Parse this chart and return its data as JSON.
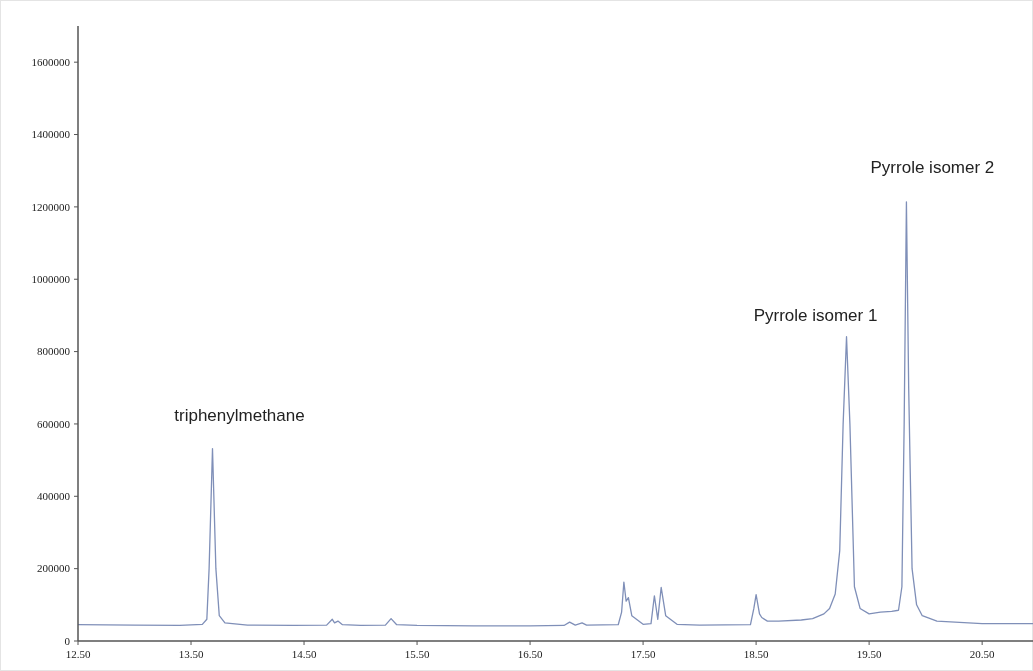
{
  "chart_data": {
    "type": "line",
    "xlim": [
      12.5,
      20.95
    ],
    "ylim": [
      0,
      1700000
    ],
    "xticks": [
      {
        "value": 12.5,
        "label": "12.50"
      },
      {
        "value": 13.5,
        "label": "13.50"
      },
      {
        "value": 14.5,
        "label": "14.50"
      },
      {
        "value": 15.5,
        "label": "15.50"
      },
      {
        "value": 16.5,
        "label": "16.50"
      },
      {
        "value": 17.5,
        "label": "17.50"
      },
      {
        "value": 18.5,
        "label": "18.50"
      },
      {
        "value": 19.5,
        "label": "19.50"
      },
      {
        "value": 20.5,
        "label": "20.50"
      }
    ],
    "yticks": [
      0,
      200000,
      400000,
      600000,
      800000,
      1000000,
      1200000,
      1400000,
      1600000
    ],
    "grid": false,
    "marker": "none",
    "line_style": "solid",
    "series": [
      {
        "color": "#7f8fb8",
        "x": [
          12.5,
          13.0,
          13.4,
          13.6,
          13.64,
          13.66,
          13.69,
          13.72,
          13.75,
          13.8,
          14.0,
          14.4,
          14.7,
          14.75,
          14.77,
          14.8,
          14.84,
          15.0,
          15.22,
          15.27,
          15.32,
          15.5,
          16.0,
          16.5,
          16.8,
          16.85,
          16.9,
          16.96,
          17.0,
          17.28,
          17.31,
          17.33,
          17.35,
          17.37,
          17.4,
          17.5,
          17.57,
          17.6,
          17.63,
          17.66,
          17.7,
          17.8,
          18.0,
          18.45,
          18.48,
          18.5,
          18.53,
          18.55,
          18.6,
          18.7,
          18.9,
          19.0,
          19.1,
          19.15,
          19.2,
          19.24,
          19.27,
          19.3,
          19.33,
          19.37,
          19.42,
          19.5,
          19.6,
          19.7,
          19.76,
          19.79,
          19.81,
          19.83,
          19.85,
          19.88,
          19.92,
          19.97,
          20.1,
          20.5,
          20.95
        ],
        "values": [
          45000,
          44000,
          43000,
          46000,
          60000,
          200000,
          532000,
          200000,
          70000,
          50000,
          44000,
          43000,
          44000,
          60000,
          50000,
          55000,
          45000,
          43000,
          44000,
          62000,
          45000,
          43000,
          42000,
          42000,
          43000,
          52000,
          44000,
          50000,
          44000,
          45000,
          80000,
          163000,
          110000,
          120000,
          70000,
          46000,
          48000,
          125000,
          60000,
          148000,
          70000,
          46000,
          44000,
          45000,
          90000,
          128000,
          75000,
          65000,
          55000,
          55000,
          58000,
          62000,
          75000,
          90000,
          130000,
          250000,
          600000,
          841000,
          600000,
          150000,
          90000,
          75000,
          80000,
          82000,
          85000,
          150000,
          600000,
          1214000,
          700000,
          200000,
          100000,
          70000,
          55000,
          48000,
          48000
        ]
      }
    ],
    "annotations": [
      {
        "text": "triphenylmethane",
        "x": 13.69,
        "y": 532000
      },
      {
        "text": "Pyrrole isomer 1",
        "x": 19.3,
        "y": 841000
      },
      {
        "text": "Pyrrole isomer 2",
        "x": 19.83,
        "y": 1214000
      }
    ]
  }
}
